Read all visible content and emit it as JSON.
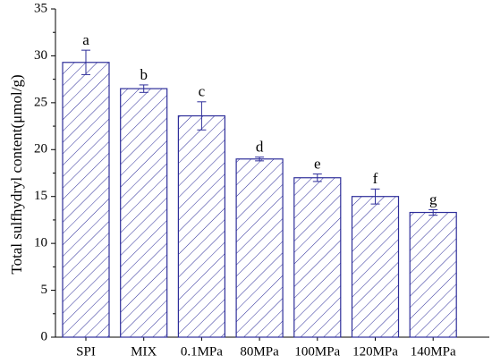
{
  "chart_data": {
    "type": "bar",
    "y_label": "Total sulfhydryl content(μmol/g)",
    "categories": [
      "SPI",
      "MIX",
      "0.1MPa",
      "80MPa",
      "100MPa",
      "120MPa",
      "140MPa"
    ],
    "values": [
      29.3,
      26.5,
      23.6,
      19.0,
      17.0,
      15.0,
      13.3
    ],
    "errors": [
      1.3,
      0.4,
      1.5,
      0.2,
      0.4,
      0.8,
      0.3
    ],
    "annotations": [
      "a",
      "b",
      "c",
      "d",
      "e",
      "f",
      "g"
    ],
    "color": "#2e2e9a",
    "ylim": [
      0,
      35
    ],
    "yticks": [
      0,
      5,
      10,
      15,
      20,
      25,
      30,
      35
    ]
  }
}
